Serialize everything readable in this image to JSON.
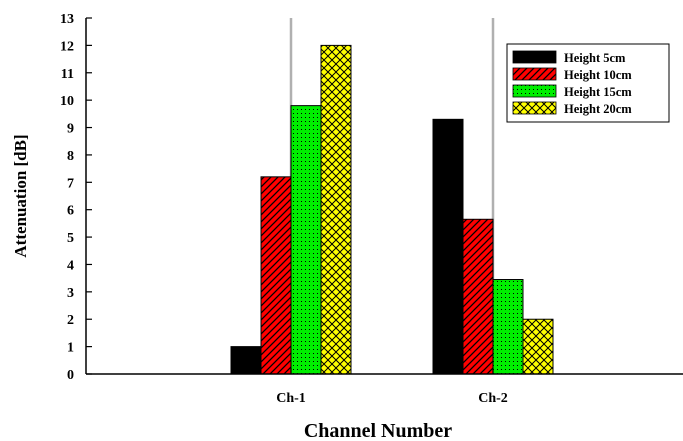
{
  "chart_data": {
    "type": "bar",
    "title": "",
    "xlabel": "Channel Number",
    "ylabel": "Attenuation [dB]",
    "ylim": [
      0,
      13
    ],
    "yticks": [
      0,
      1,
      2,
      3,
      4,
      5,
      6,
      7,
      8,
      9,
      10,
      11,
      12,
      13
    ],
    "categories": [
      "Ch-1",
      "Ch-2"
    ],
    "grid": "vertical lines at categories",
    "legend_position": "top-right",
    "series": [
      {
        "name": "Height 5cm",
        "values": [
          1.0,
          9.3
        ],
        "color": "#000000",
        "pattern": "solid"
      },
      {
        "name": "Height 10cm",
        "values": [
          7.2,
          5.65
        ],
        "color": "#ff0000",
        "pattern": "diagonal-hatch"
      },
      {
        "name": "Height 15cm",
        "values": [
          9.8,
          3.45
        ],
        "color": "#00ee00",
        "pattern": "dots"
      },
      {
        "name": "Height 20cm",
        "values": [
          12.0,
          2.0
        ],
        "color": "#ffff00",
        "pattern": "crosshatch"
      }
    ]
  }
}
